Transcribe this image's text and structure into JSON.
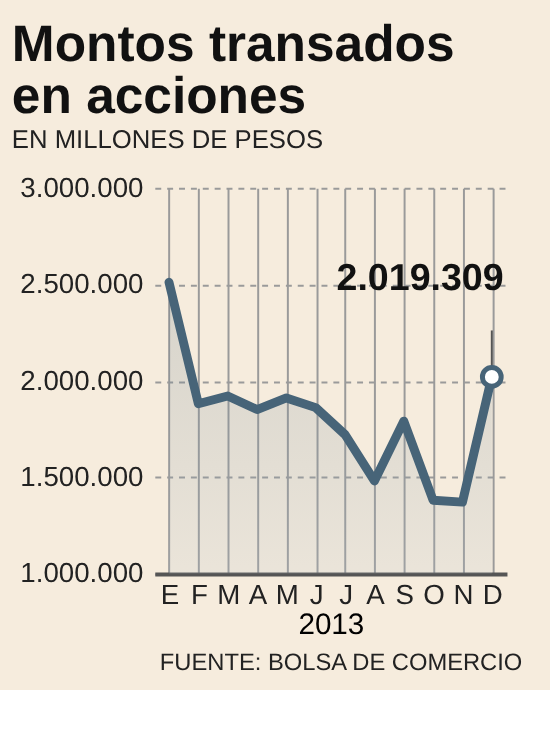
{
  "chart_data": {
    "type": "area",
    "title": "Montos transados en acciones",
    "subtitle": "EN MILLONES DE PESOS",
    "xlabel": "2013",
    "categories": [
      "E",
      "F",
      "M",
      "A",
      "M",
      "J",
      "J",
      "A",
      "S",
      "O",
      "N",
      "D"
    ],
    "series": [
      {
        "color": "#476478",
        "values": [
          2510000,
          1880000,
          1920000,
          1850000,
          1910000,
          1860000,
          1720000,
          1480000,
          1790000,
          1380000,
          1370000,
          2019309
        ]
      }
    ],
    "ylim": [
      1000000,
      3000000
    ],
    "yticks": [
      {
        "value": 1000000,
        "label": "1.000.000"
      },
      {
        "value": 1500000,
        "label": "1.500.000"
      },
      {
        "value": 2000000,
        "label": "2.000.000"
      },
      {
        "value": 2500000,
        "label": "2.500.000"
      },
      {
        "value": 3000000,
        "label": "3.000.000"
      }
    ],
    "annotations": [
      {
        "text": "2.019.309",
        "x": "D",
        "y": 2019309
      },
      "FUENTE: BOLSA DE COMERCIO"
    ],
    "grid": true,
    "marker": "none",
    "line_style": "solid"
  }
}
